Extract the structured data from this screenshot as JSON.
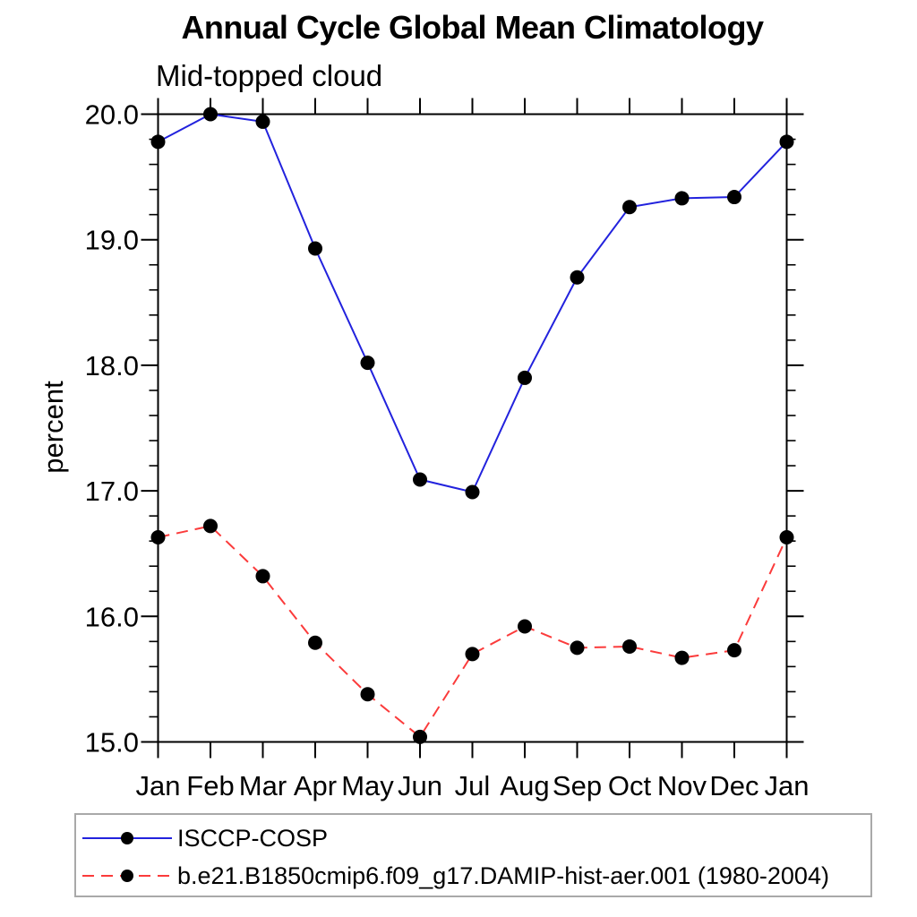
{
  "title": "Annual Cycle Global Mean Climatology",
  "subtitle": "Mid-topped cloud",
  "y_axis_label": "percent",
  "chart_data": {
    "type": "line",
    "categories": [
      "Jan",
      "Feb",
      "Mar",
      "Apr",
      "May",
      "Jun",
      "Jul",
      "Aug",
      "Sep",
      "Oct",
      "Nov",
      "Dec",
      "Jan"
    ],
    "series": [
      {
        "name": "ISCCP-COSP",
        "line_style": "solid",
        "color": "#2222dd",
        "marker": "filled-circle",
        "marker_color": "#000000",
        "values": [
          19.78,
          20.0,
          19.94,
          18.93,
          18.02,
          17.09,
          16.99,
          17.9,
          18.7,
          19.26,
          19.33,
          19.34,
          19.78
        ]
      },
      {
        "name": "b.e21.B1850cmip6.f09_g17.DAMIP-hist-aer.001 (1980-2004)",
        "line_style": "dashed",
        "color": "#fb3b3b",
        "marker": "filled-circle",
        "marker_color": "#000000",
        "values": [
          16.63,
          16.72,
          16.32,
          15.79,
          15.38,
          15.04,
          15.7,
          15.92,
          15.75,
          15.76,
          15.67,
          15.73,
          16.63
        ]
      }
    ],
    "xlabel": "",
    "ylabel": "percent",
    "ylim": [
      15.0,
      20.0
    ],
    "y_major_tick_labels": [
      "20.0",
      "19.0",
      "18.0",
      "17.0",
      "16.0",
      "15.0"
    ],
    "y_major_step": 1.0,
    "y_minor_step": 0.2,
    "grid": false,
    "legend_position": "bottom",
    "axis_color": "#000000"
  },
  "legend": {
    "items": [
      {
        "label": "ISCCP-COSP"
      },
      {
        "label": "b.e21.B1850cmip6.f09_g17.DAMIP-hist-aer.001 (1980-2004)"
      }
    ]
  }
}
